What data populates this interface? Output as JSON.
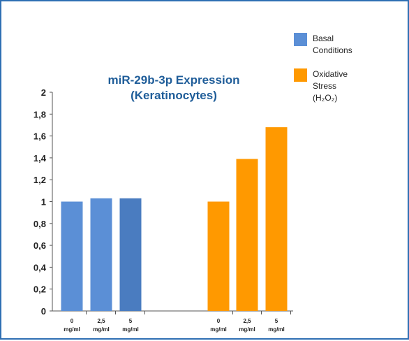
{
  "chart_data": {
    "type": "bar",
    "title": [
      "miR-29b-3p Expression",
      "(Keratinocytes)"
    ],
    "ylim": [
      0,
      2
    ],
    "yticks": [
      "0",
      "0,2",
      "0,4",
      "0,6",
      "0,8",
      "1",
      "1,2",
      "1,4",
      "1,6",
      "1,8",
      "2"
    ],
    "grid": false,
    "legend_position": "top-right",
    "groups": [
      {
        "name": "Basal Conditions",
        "legend_lines": [
          "Basal",
          "Conditions"
        ],
        "color": "#5b8fd6",
        "categories": [
          [
            "0",
            "mg/ml"
          ],
          [
            "2,5",
            "mg/ml"
          ],
          [
            "5",
            "mg/ml"
          ]
        ],
        "values": [
          1.0,
          1.03,
          1.03
        ],
        "bar_colors": [
          "#5b8fd6",
          "#5b8fd6",
          "#4a7cc0"
        ]
      },
      {
        "name": "Oxidative Stress (H2O2)",
        "legend_lines": [
          "Oxidative",
          "Stress",
          "(H₂O₂)"
        ],
        "color": "#ff9900",
        "categories": [
          [
            "0",
            "mg/ml"
          ],
          [
            "2,5",
            "mg/ml"
          ],
          [
            "5",
            "mg/ml"
          ]
        ],
        "values": [
          1.0,
          1.39,
          1.68
        ],
        "bar_colors": [
          "#ff9900",
          "#ff9900",
          "#ff9900"
        ]
      }
    ]
  }
}
